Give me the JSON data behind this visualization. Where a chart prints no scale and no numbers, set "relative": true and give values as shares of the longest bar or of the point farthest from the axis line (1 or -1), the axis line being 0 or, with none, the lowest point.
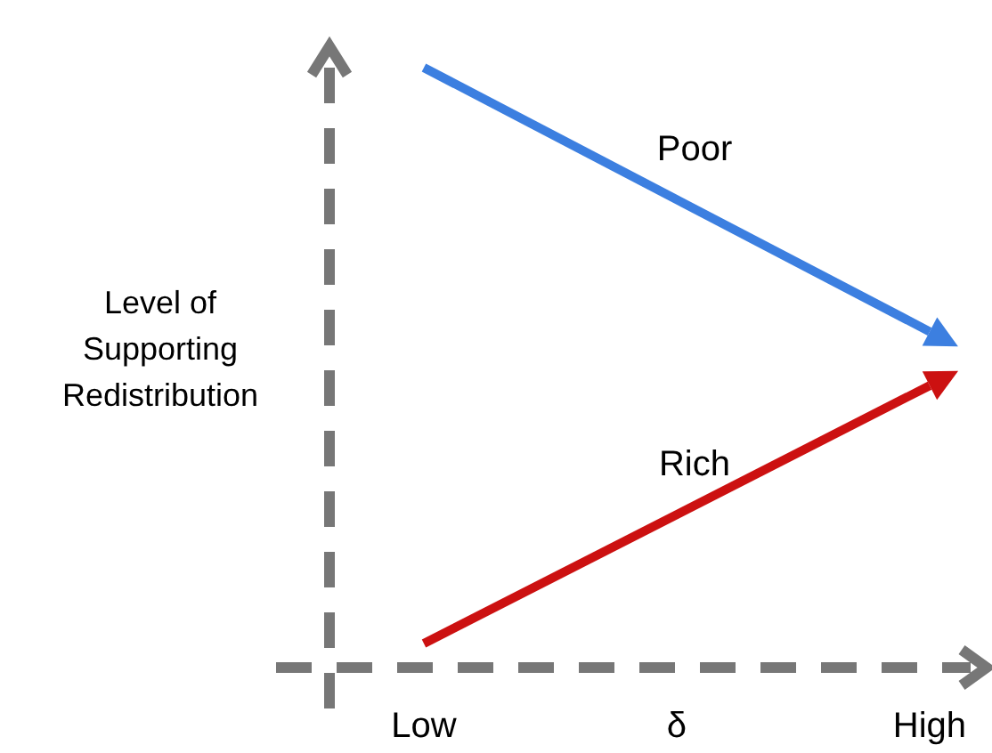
{
  "chart_data": {
    "type": "line",
    "relative": true,
    "categories": [
      "Low",
      "High"
    ],
    "xlabel": "δ",
    "ylabel": "Level of Supporting Redistribution",
    "line_style": "solid",
    "series": [
      {
        "name": "Poor",
        "color": "#3c7fe0",
        "values": [
          1,
          0.56
        ]
      },
      {
        "name": "Rich",
        "color": "#cc1111",
        "values": [
          0.04,
          0.47
        ]
      }
    ]
  }
}
